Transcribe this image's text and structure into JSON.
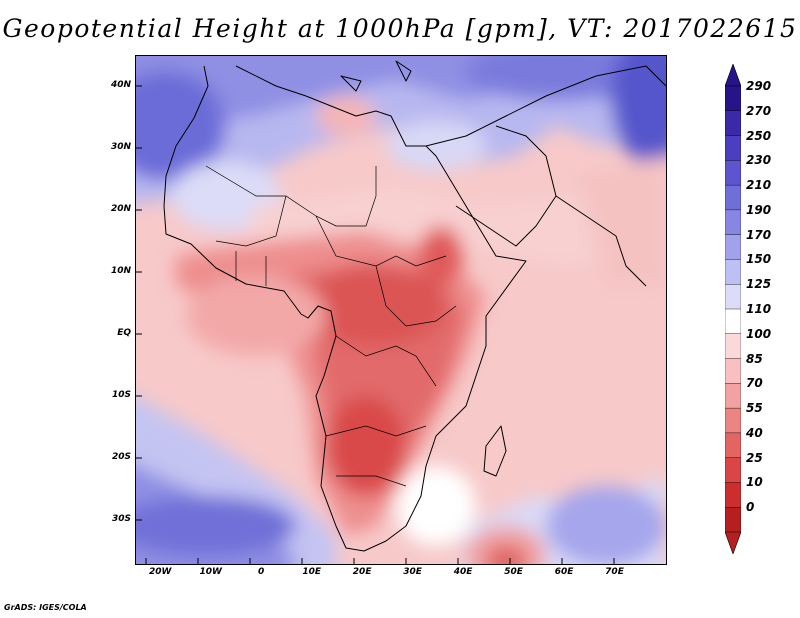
{
  "title": "Geopotential Height at 1000hPa [gpm], VT: 2017022615",
  "footer": "GrADS: IGES/COLA",
  "map": {
    "lon_range": [
      -25,
      80
    ],
    "lat_range": [
      -37,
      45
    ],
    "lat_ticks": [
      {
        "value": 40,
        "label": "40N"
      },
      {
        "value": 30,
        "label": "30N"
      },
      {
        "value": 20,
        "label": "20N"
      },
      {
        "value": 10,
        "label": "10N"
      },
      {
        "value": 0,
        "label": "EQ"
      },
      {
        "value": -10,
        "label": "10S"
      },
      {
        "value": -20,
        "label": "20S"
      },
      {
        "value": -30,
        "label": "30S"
      }
    ],
    "lon_ticks": [
      {
        "value": -20,
        "label": "20W"
      },
      {
        "value": -10,
        "label": "10W"
      },
      {
        "value": 0,
        "label": "0"
      },
      {
        "value": 10,
        "label": "10E"
      },
      {
        "value": 20,
        "label": "20E"
      },
      {
        "value": 30,
        "label": "30E"
      },
      {
        "value": 40,
        "label": "40E"
      },
      {
        "value": 50,
        "label": "50E"
      },
      {
        "value": 60,
        "label": "60E"
      },
      {
        "value": 70,
        "label": "70E"
      }
    ]
  },
  "colorbar": {
    "levels": [
      290,
      270,
      250,
      230,
      210,
      190,
      170,
      150,
      125,
      110,
      100,
      85,
      70,
      55,
      40,
      25,
      10,
      0
    ],
    "colors": [
      "#27138a",
      "#3a2aa8",
      "#4c3ec0",
      "#5d55cf",
      "#6f6fd9",
      "#8787e3",
      "#a2a2ec",
      "#bebff2",
      "#dcdcf8",
      "#ffffff",
      "#fcd9d9",
      "#f8c0c0",
      "#f2a2a2",
      "#ec8484",
      "#e46464",
      "#da4646",
      "#cc2e2e",
      "#b51f1f"
    ]
  }
}
